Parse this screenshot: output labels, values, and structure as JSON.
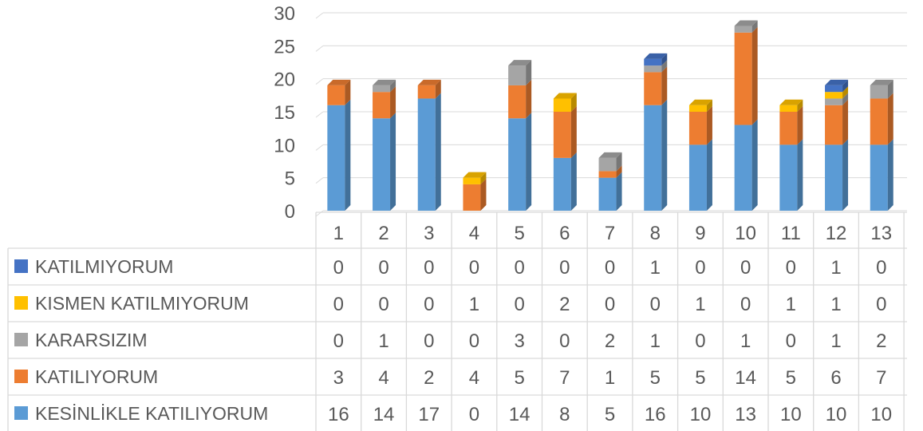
{
  "chart_data": {
    "type": "bar",
    "stacked": true,
    "three_d": true,
    "title": "",
    "xlabel": "",
    "ylabel": "",
    "ylim": [
      0,
      30
    ],
    "yticks": [
      "0",
      "5",
      "10",
      "15",
      "20",
      "25",
      "30"
    ],
    "grid": true,
    "legend": "data-table-left",
    "categories": [
      "1",
      "2",
      "3",
      "4",
      "5",
      "6",
      "7",
      "8",
      "9",
      "10",
      "11",
      "12",
      "13"
    ],
    "series": [
      {
        "name": "KESİNLİKLE KATILIYORUM",
        "color": "#5b9bd5",
        "values": [
          16,
          14,
          17,
          0,
          14,
          8,
          5,
          16,
          10,
          13,
          10,
          10,
          10
        ]
      },
      {
        "name": "KATILIYORUM",
        "color": "#ed7d31",
        "values": [
          3,
          4,
          2,
          4,
          5,
          7,
          1,
          5,
          5,
          14,
          5,
          6,
          7
        ]
      },
      {
        "name": "KARARSIZIM",
        "color": "#a5a5a5",
        "values": [
          0,
          1,
          0,
          0,
          3,
          0,
          2,
          1,
          0,
          1,
          0,
          1,
          2
        ]
      },
      {
        "name": "KISMEN KATILMIYORUM",
        "color": "#ffc000",
        "values": [
          0,
          0,
          0,
          1,
          0,
          2,
          0,
          0,
          1,
          0,
          1,
          1,
          0
        ]
      },
      {
        "name": "KATILMIYORUM",
        "color": "#4472c4",
        "values": [
          0,
          0,
          0,
          0,
          0,
          0,
          0,
          1,
          0,
          0,
          0,
          1,
          0
        ]
      }
    ],
    "table_values": {
      "KATILMIYORUM": [
        "0",
        "0",
        "0",
        "0",
        "0",
        "0",
        "0",
        "1",
        "0",
        "0",
        "0",
        "1",
        "0"
      ],
      "KISMEN KATILMIYORUM": [
        "0",
        "0",
        "0",
        "1",
        "0",
        "2",
        "0",
        "0",
        "1",
        "0",
        "1",
        "1",
        "0"
      ],
      "KARARSIZIM": [
        "0",
        "1",
        "0",
        "0",
        "3",
        "0",
        "2",
        "1",
        "0",
        "1",
        "0",
        "1",
        "2"
      ],
      "KATILIYORUM": [
        "3",
        "4",
        "2",
        "4",
        "5",
        "7",
        "1",
        "5",
        "5",
        "14",
        "5",
        "6",
        "7"
      ],
      "KESİNLİKLE KATILIYORUM": [
        "16",
        "14",
        "17",
        "0",
        "14",
        "8",
        "5",
        "16",
        "10",
        "13",
        "10",
        "10",
        "10"
      ]
    }
  }
}
